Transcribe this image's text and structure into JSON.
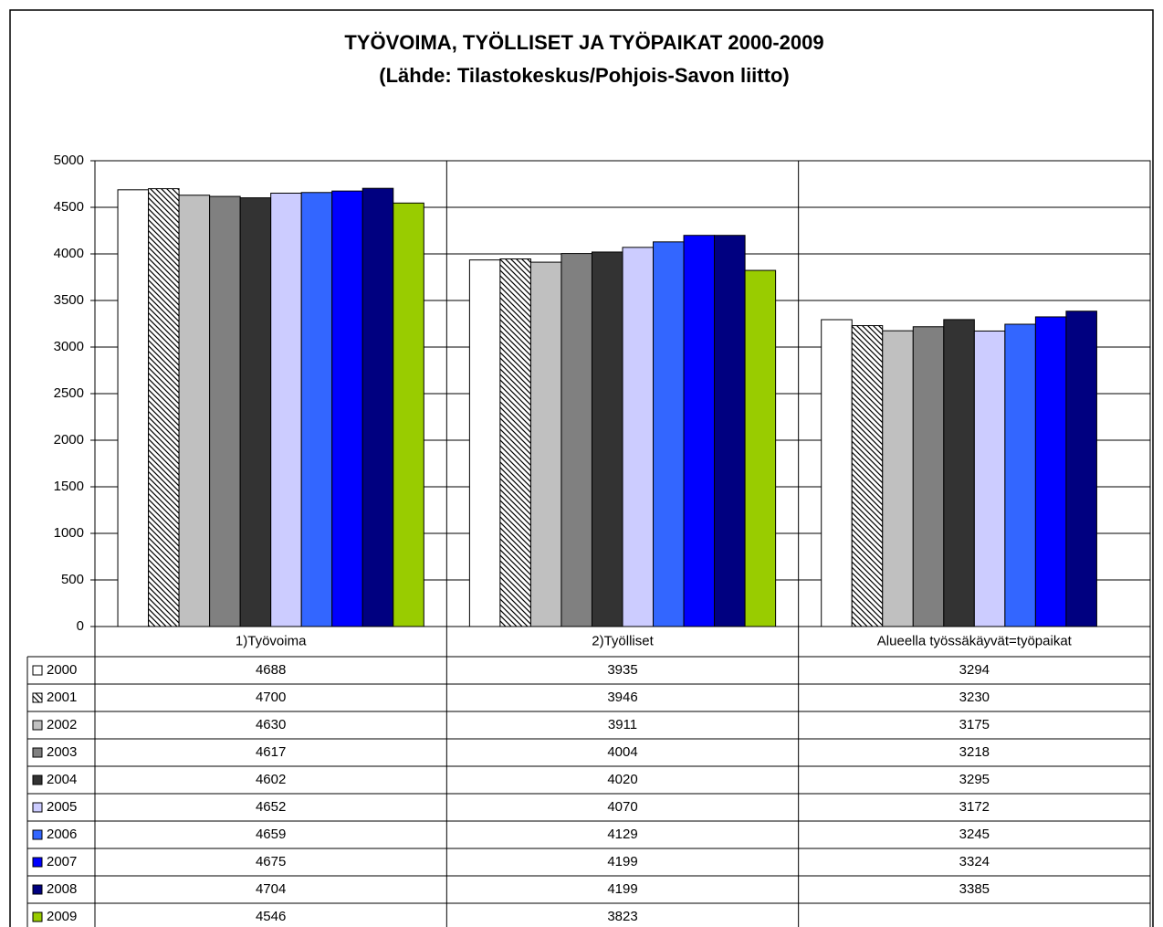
{
  "chart_data": {
    "type": "bar",
    "title": "TYÖVOIMA, TYÖLLISET JA TYÖPAIKAT 2000-2009",
    "subtitle": "(Lähde: Tilastokeskus/Pohjois-Savon liitto)",
    "categories": [
      "1)Työvoima",
      "2)Työlliset",
      "Alueella työssäkäyvät=työpaikat"
    ],
    "series": [
      {
        "name": "2000",
        "color": "#ffffff",
        "values": [
          4688,
          3935,
          3294
        ]
      },
      {
        "name": "2001",
        "color": "#ffffff",
        "pattern": "hatch",
        "values": [
          4700,
          3946,
          3230
        ]
      },
      {
        "name": "2002",
        "color": "#c0c0c0",
        "values": [
          4630,
          3911,
          3175
        ]
      },
      {
        "name": "2003",
        "color": "#808080",
        "values": [
          4617,
          4004,
          3218
        ]
      },
      {
        "name": "2004",
        "color": "#333333",
        "values": [
          4602,
          4020,
          3295
        ]
      },
      {
        "name": "2005",
        "color": "#ccccff",
        "values": [
          4652,
          4070,
          3172
        ]
      },
      {
        "name": "2006",
        "color": "#3366ff",
        "values": [
          4659,
          4129,
          3245
        ]
      },
      {
        "name": "2007",
        "color": "#0000ff",
        "values": [
          4675,
          4199,
          3324
        ]
      },
      {
        "name": "2008",
        "color": "#000080",
        "values": [
          4704,
          4199,
          3385
        ]
      },
      {
        "name": "2009",
        "color": "#99cc00",
        "values": [
          4546,
          3823,
          null
        ]
      }
    ],
    "ylim": [
      0,
      5000
    ],
    "yticks": [
      0,
      500,
      1000,
      1500,
      2000,
      2500,
      3000,
      3500,
      4000,
      4500,
      5000
    ],
    "grid": true
  }
}
